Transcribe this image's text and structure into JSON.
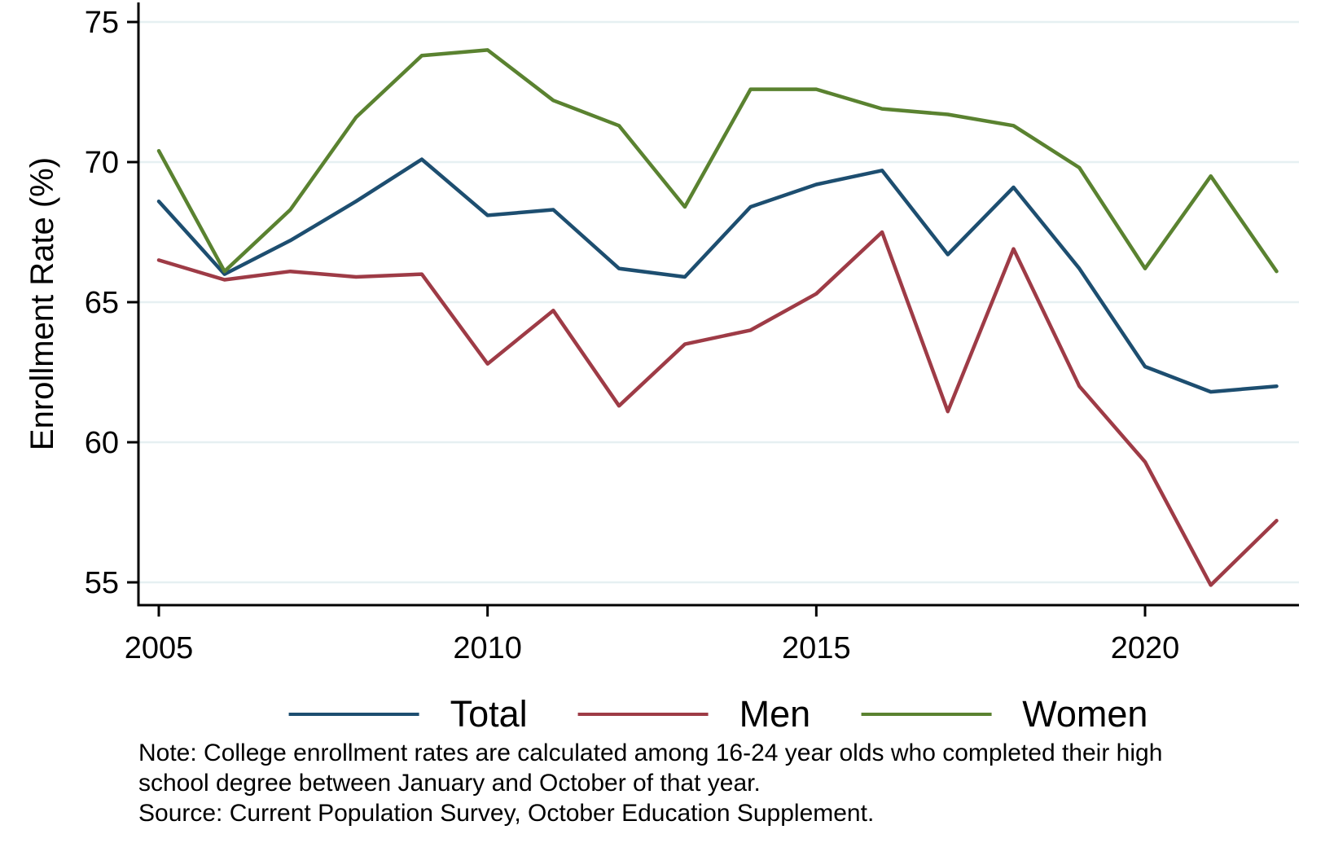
{
  "figure": {
    "y_axis_title": "Enrollment Rate (%)",
    "note_lines": [
      "Note: College enrollment rates are calculated among 16-24 year olds who completed their high",
      "school degree between January and October of that year.",
      "Source: Current Population Survey, October Education Supplement."
    ]
  },
  "chart_data": {
    "type": "line",
    "title": "",
    "xlabel": "",
    "ylabel": "Enrollment Rate (%)",
    "x": [
      2005,
      2006,
      2007,
      2008,
      2009,
      2010,
      2011,
      2012,
      2013,
      2014,
      2015,
      2016,
      2017,
      2018,
      2019,
      2020,
      2021,
      2022
    ],
    "series": [
      {
        "name": "Total",
        "color": "#1d4e70",
        "values": [
          68.6,
          66.0,
          67.2,
          68.6,
          70.1,
          68.1,
          68.3,
          66.2,
          65.9,
          68.4,
          69.2,
          69.7,
          66.7,
          69.1,
          66.2,
          62.7,
          61.8,
          62.0
        ]
      },
      {
        "name": "Men",
        "color": "#9e3b46",
        "values": [
          66.5,
          65.8,
          66.1,
          65.9,
          66.0,
          62.8,
          64.7,
          61.3,
          63.5,
          64.0,
          65.3,
          67.5,
          61.1,
          66.9,
          62.0,
          59.3,
          54.9,
          57.2
        ]
      },
      {
        "name": "Women",
        "color": "#5a8230",
        "values": [
          70.4,
          66.1,
          68.3,
          71.6,
          73.8,
          74.0,
          72.2,
          71.3,
          68.4,
          72.6,
          72.6,
          71.9,
          71.7,
          71.3,
          69.8,
          66.2,
          69.5,
          66.1
        ]
      }
    ],
    "x_ticks": [
      2005,
      2010,
      2015,
      2020
    ],
    "y_ticks": [
      55,
      60,
      65,
      70,
      75
    ],
    "xlim": [
      2005,
      2022
    ],
    "ylim": [
      55,
      75
    ],
    "grid": "horizontal-only",
    "grid_color": "#e6f0f2",
    "axis_color": "#000000",
    "legend_position": "bottom",
    "legend_entries": [
      "Total",
      "Men",
      "Women"
    ]
  }
}
